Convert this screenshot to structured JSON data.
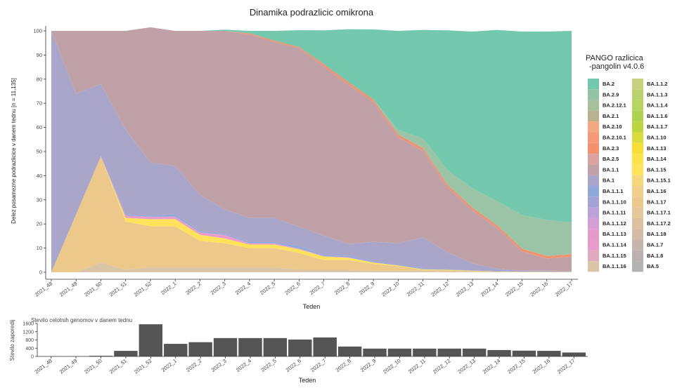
{
  "chart_data": [
    {
      "type": "area",
      "title": "Dinamika podrazlicic omikrona",
      "xlabel": "Teden",
      "ylabel": "Delez posamezne podrazlicice v danem tednu [n = 11,135]",
      "ylim": [
        0,
        100
      ],
      "yticks": [
        0,
        10,
        20,
        30,
        40,
        50,
        60,
        70,
        80,
        90,
        100
      ],
      "categories": [
        "2021_48",
        "2021_49",
        "2021_50",
        "2021_51",
        "2021_52",
        "2022_1",
        "2022_2",
        "2022_3",
        "2022_4",
        "2022_5",
        "2022_6",
        "2022_7",
        "2022_8",
        "2022_9",
        "2022_10",
        "2022_11",
        "2022_12",
        "2022_13",
        "2022_14",
        "2022_15",
        "2022_16",
        "2022_17"
      ],
      "grid": false,
      "legend_position": "right",
      "legend_title": [
        "PANGO razlicica",
        "-pangolin v4.0.6"
      ],
      "legend_entries": [
        "BA.2",
        "BA.2.9",
        "BA.2.12.1",
        "BA.2.1",
        "BA.2.10",
        "BA.2.10.1",
        "BA.2.3",
        "BA.2.5",
        "BA.1.1",
        "BA.1",
        "BA.1.1.1",
        "BA.1.1.10",
        "BA.1.1.11",
        "BA.1.1.12",
        "BA.1.1.13",
        "BA.1.1.14",
        "BA.1.1.15",
        "BA.1.1.16",
        "BA.1.1.2",
        "BA.1.1.3",
        "BA.1.1.4",
        "BA.1.1.6",
        "BA.1.1.7",
        "BA.1.10",
        "BA.1.13",
        "BA.1.14",
        "BA.1.15",
        "BA.1.15.1",
        "BA.1.16",
        "BA.1.17",
        "BA.1.17.1",
        "BA.1.17.2",
        "BA.1.18",
        "BA.1.7",
        "BA.1.8",
        "BA.5"
      ],
      "series": [
        {
          "name": "BA.1.1.16",
          "color": "#dcc4a6",
          "values": [
            0,
            0,
            4,
            1,
            2,
            2,
            2,
            2,
            2,
            2,
            1,
            1,
            1,
            0.5,
            0.5,
            0.5,
            0.3,
            0.2,
            0.1,
            0,
            0,
            0
          ]
        },
        {
          "name": "BA.1.17.2",
          "color": "#ecc98a",
          "values": [
            0,
            24,
            44,
            20,
            17,
            17,
            11,
            10,
            8,
            8,
            7,
            4,
            4,
            3,
            2,
            0.5,
            0.5,
            0.3,
            0.2,
            0.2,
            0.2,
            0.2
          ]
        },
        {
          "name": "BA.1.15",
          "color": "#fde25a",
          "values": [
            0,
            0,
            0,
            1.5,
            3,
            3,
            2.5,
            2,
            1.5,
            1.5,
            1.5,
            1.5,
            1,
            0.5,
            0.3,
            0.2,
            0.2,
            0.1,
            0,
            0,
            0,
            0
          ]
        },
        {
          "name": "BA.1.1.14",
          "color": "#e89ccb",
          "values": [
            0,
            0,
            0,
            1,
            1,
            1,
            1,
            1.5,
            0.5,
            0.5,
            0.3,
            0.2,
            0.2,
            0.1,
            0,
            0,
            0,
            0,
            0,
            0,
            0,
            0
          ]
        },
        {
          "name": "BA.1.1.1",
          "color": "#8fa8d8",
          "values": [
            0,
            0,
            0,
            0.5,
            0.5,
            1,
            0.5,
            0.5,
            0.5,
            0.5,
            1,
            0.5,
            0.5,
            0.5,
            0.2,
            0.2,
            0.2,
            0.1,
            0.1,
            0,
            0,
            0
          ]
        },
        {
          "name": "BA.1",
          "color": "#a9a6c9",
          "values": [
            100,
            50,
            30,
            35,
            22,
            20,
            15,
            10,
            10,
            10,
            8,
            8,
            5,
            8,
            9,
            13,
            7,
            3,
            1,
            0.5,
            0.5,
            0.3
          ]
        },
        {
          "name": "BA.1.1",
          "color": "#c1a1a8",
          "values": [
            0,
            26,
            22,
            41,
            56,
            56,
            68,
            74,
            76,
            73,
            74,
            70,
            66,
            58,
            44,
            36,
            27,
            22,
            17,
            8,
            5,
            6
          ]
        },
        {
          "name": "BA.2.3",
          "color": "#f3906e",
          "values": [
            0,
            0,
            0,
            0,
            0,
            0,
            0,
            0,
            0.5,
            0.5,
            0.5,
            1,
            1,
            1,
            1,
            1,
            1,
            1,
            1,
            1,
            1,
            1
          ]
        },
        {
          "name": "BA.2.9",
          "color": "#9bc3a5",
          "values": [
            0,
            0,
            0,
            0,
            0,
            0,
            0,
            0,
            0,
            0,
            0,
            0,
            0,
            0,
            2,
            4,
            6,
            8,
            10,
            14,
            15,
            13
          ]
        },
        {
          "name": "BA.2",
          "color": "#73c8ae",
          "values": [
            0,
            0,
            0,
            0,
            0,
            0,
            0,
            0.5,
            1,
            4,
            7,
            14,
            22,
            29,
            41,
            45,
            58,
            65,
            71,
            76,
            78,
            79.5
          ]
        }
      ]
    },
    {
      "type": "bar",
      "title": "Stevilo celotnih genomov v danem tednu",
      "xlabel": "Teden",
      "ylabel": "Stevilo zaporedij",
      "ylim": [
        0,
        1600
      ],
      "yticks": [
        0,
        400,
        800,
        1200,
        1600
      ],
      "categories": [
        "2021_48",
        "2021_49",
        "2021_50",
        "2021_51",
        "2021_52",
        "2022_1",
        "2022_2",
        "2022_3",
        "2022_4",
        "2022_5",
        "2022_6",
        "2022_7",
        "2022_8",
        "2022_9",
        "2022_10",
        "2022_11",
        "2022_12",
        "2022_13",
        "2022_14",
        "2022_15",
        "2022_16",
        "2022_17"
      ],
      "values": [
        5,
        5,
        30,
        270,
        1560,
        610,
        690,
        890,
        890,
        890,
        820,
        920,
        480,
        380,
        380,
        380,
        380,
        380,
        310,
        280,
        270,
        190
      ],
      "bar_color": "#555555"
    }
  ],
  "legend": {
    "swatches": {
      "BA.2": "#73c8ae",
      "BA.2.9": "#93c2a4",
      "BA.2.12.1": "#a7bf9b",
      "BA.2.1": "#b9b28f",
      "BA.2.10": "#f2a981",
      "BA.2.10.1": "#f49a78",
      "BA.2.3": "#f3906e",
      "BA.2.5": "#d8a3a0",
      "BA.1.1": "#c1a1a8",
      "BA.1": "#a9a6c9",
      "BA.1.1.1": "#8fa8d8",
      "BA.1.1.10": "#a3a3d6",
      "BA.1.1.11": "#bda2d8",
      "BA.1.1.12": "#d49fd4",
      "BA.1.1.13": "#e59ccc",
      "BA.1.1.14": "#e89ccb",
      "BA.1.1.15": "#e1a9c0",
      "BA.1.1.16": "#dcc4a6",
      "BA.1.1.2": "#c7d27e",
      "BA.1.1.3": "#bbd26c",
      "BA.1.1.4": "#b6d65d",
      "BA.1.1.6": "#aed44f",
      "BA.1.1.7": "#bcd43d",
      "BA.1.10": "#dcdb3c",
      "BA.1.13": "#f7de37",
      "BA.1.14": "#fde24a",
      "BA.1.15": "#fde25a",
      "BA.1.15.1": "#f7d878",
      "BA.1.16": "#efcf89",
      "BA.1.17": "#ecc98a",
      "BA.1.17.1": "#e6c79a",
      "BA.1.17.2": "#dcc0a0",
      "BA.1.18": "#d3bba8",
      "BA.1.7": "#c6b5ab",
      "BA.1.8": "#bbb2b0",
      "BA.5": "#b3b3b3"
    }
  }
}
